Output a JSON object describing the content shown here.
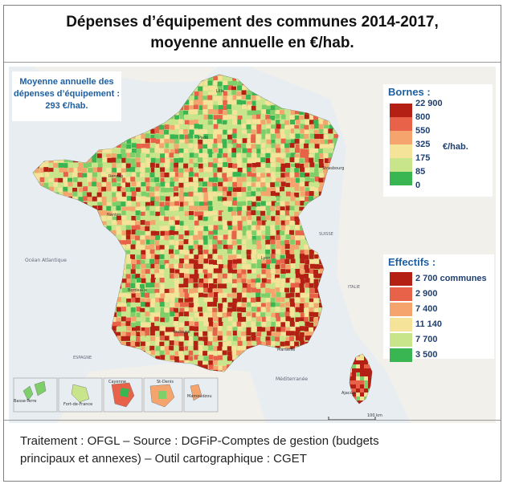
{
  "title": {
    "line1": "Dépenses d’équipement des communes 2014-2017,",
    "line2": "moyenne annuelle en €/hab."
  },
  "average_box": {
    "line1": "Moyenne annuelle des",
    "line2": "dépenses d’équipement :",
    "line3": "293 €/hab."
  },
  "bornes_legend": {
    "title": "Bornes :",
    "unit": "€/hab.",
    "thresholds": [
      "22 900",
      "800",
      "550",
      "325",
      "175",
      "85",
      "0"
    ],
    "colors": [
      "#b52015",
      "#e8624a",
      "#f5a46e",
      "#f5e39a",
      "#c9e58c",
      "#7ecf6a",
      "#39b552"
    ]
  },
  "effectifs_legend": {
    "title": "Effectifs :",
    "counts": [
      "2 700 communes",
      "2 900",
      "7 400",
      "11 140",
      "7 700",
      "3 500"
    ],
    "colors": [
      "#b52015",
      "#e8624a",
      "#f5a46e",
      "#f5e39a",
      "#c9e58c",
      "#39b552"
    ]
  },
  "map_labels": {
    "ocean": "Océan Atlantique",
    "sea": "Méditerranée",
    "spain": "ESPAGNE",
    "italy": "ITALIE",
    "switzerland": "SUISSE",
    "lille": "Lille",
    "paris": "Paris",
    "rennes": "Rennes",
    "nantes": "Nantes",
    "strasbourg": "Strasbourg",
    "lyon": "Lyon",
    "bordeaux": "Bordeaux",
    "toulouse": "Toulouse",
    "marseille": "Marseille",
    "ajaccio": "Ajaccio",
    "basse_terre": "Basse-Terre",
    "fort_de_france": "Fort-de-France",
    "cayenne": "Cayenne",
    "st_denis": "St-Denis",
    "mamoudzou": "Mamoudzou",
    "scale": "100 km"
  },
  "source": {
    "line1": "Traitement : OFGL – Source : DGFiP-Comptes de gestion (budgets",
    "line2": "principaux et annexes) – Outil cartographique : CGET"
  }
}
